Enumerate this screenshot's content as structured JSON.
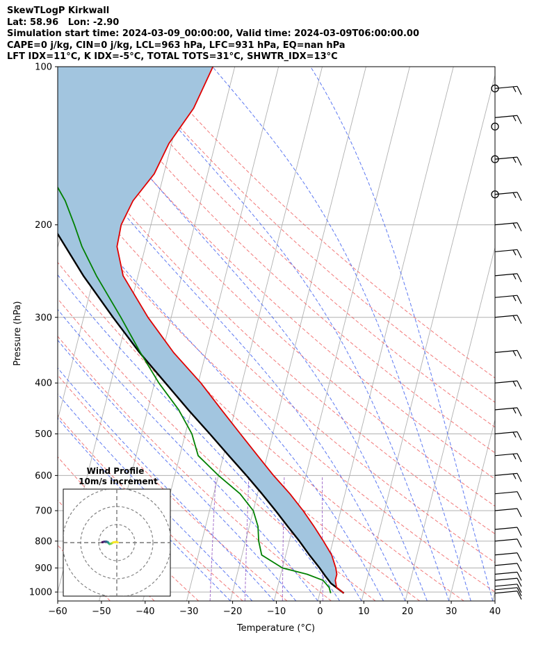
{
  "title_lines": [
    "SkewTLogP Kirkwall",
    "Lat: 58.96   Lon: -2.90",
    "Simulation start time: 2024-03-09_00:00:00, Valid time: 2024-03-09T06:00:00.00",
    "CAPE=0 j/kg, CIN=0 j/kg, LCL=963 hPa, LFC=931 hPa, EQ=nan hPa",
    "LFT IDX=11°C, K IDX=-5°C, TOTAL TOTS=31°C, SHWTR_IDX=13°C"
  ],
  "colors": {
    "temperature": "#e00000",
    "dewpoint": "#008000",
    "parcel": "#000000",
    "cape_fill": "#a2c5df",
    "dry_adiabat": "#f06060",
    "moist_adiabat": "#4060f0",
    "mixing_ratio": "#9050c0",
    "isotherm": "#b0b0b0",
    "grid": "#b0b0b0"
  },
  "chart_data": {
    "type": "line",
    "subtype": "skew-t log-p",
    "xlabel": "Temperature (°C)",
    "ylabel": "Pressure (hPa)",
    "xlim": [
      -60,
      40
    ],
    "ylim": [
      1040,
      100
    ],
    "y_scale": "log",
    "x_ticks": [
      -60,
      -50,
      -40,
      -30,
      -20,
      -10,
      0,
      10,
      20,
      30,
      40
    ],
    "x_tick_labels": [
      "−60",
      "−50",
      "−40",
      "−30",
      "−20",
      "−10",
      "0",
      "10",
      "20",
      "30",
      "40"
    ],
    "y_ticks": [
      100,
      200,
      300,
      400,
      500,
      600,
      700,
      800,
      900,
      1000
    ],
    "y_tick_labels": [
      "100",
      "200",
      "300",
      "400",
      "500",
      "600",
      "700",
      "800",
      "900",
      "1000"
    ],
    "grid": true,
    "series": [
      {
        "key": "temperature",
        "p": [
          1005,
          980,
          950,
          925,
          900,
          850,
          800,
          750,
          700,
          650,
          600,
          550,
          500,
          450,
          400,
          350,
          300,
          250,
          220,
          200,
          180,
          160,
          140,
          120,
          100
        ],
        "t": [
          5.5,
          3.5,
          2.8,
          2.8,
          2.2,
          0.5,
          -2.2,
          -5.2,
          -8.6,
          -12.6,
          -17.4,
          -22.2,
          -27.4,
          -33.1,
          -39.4,
          -47.4,
          -55.3,
          -63.4,
          -66.5,
          -66.8,
          -65.5,
          -62.2,
          -60.6,
          -57.0,
          -55.0
        ]
      },
      {
        "key": "dewpoint",
        "p": [
          1005,
          980,
          950,
          925,
          900,
          850,
          800,
          750,
          700,
          650,
          600,
          550,
          500,
          450,
          400,
          350,
          300,
          250,
          220,
          200,
          180,
          160,
          140,
          120,
          100
        ],
        "t": [
          2.5,
          1.8,
          0.0,
          -4.0,
          -10.0,
          -15.5,
          -17.0,
          -18.0,
          -20.0,
          -24.0,
          -30.0,
          -35.8,
          -38.5,
          -42.9,
          -49.0,
          -55.0,
          -61.5,
          -69.5,
          -74.5,
          -77.5,
          -81.0,
          -86.0,
          -90.5,
          -94.0,
          -96.0
        ]
      },
      {
        "key": "parcel",
        "p": [
          1005,
          963,
          931,
          900,
          850,
          800,
          750,
          700,
          650,
          600,
          550,
          500,
          450,
          400,
          350,
          300,
          250,
          200,
          150,
          100
        ],
        "t": [
          5.5,
          2.0,
          0.2,
          -1.5,
          -4.6,
          -7.7,
          -11.2,
          -14.9,
          -19.0,
          -23.6,
          -28.8,
          -34.4,
          -40.7,
          -47.5,
          -55.2,
          -63.3,
          -72.5,
          -82.6,
          -93.8,
          -105.5
        ]
      }
    ],
    "wind_barbs": {
      "p": [
        1005,
        990,
        975,
        950,
        925,
        890,
        850,
        800,
        760,
        700,
        650,
        600,
        550,
        500,
        450,
        400,
        350,
        300,
        275,
        250,
        225,
        200,
        175,
        150,
        125,
        110
      ],
      "count": 26,
      "calm_circles_p": [
        175,
        150,
        130,
        110
      ]
    },
    "hodograph": {
      "title": "Wind Profile",
      "subtitle": "10m/s increment",
      "rings_ms": [
        10,
        20,
        30
      ],
      "trace_u": [
        -8,
        -7,
        -6,
        -5,
        -4.5,
        -4,
        -3,
        -2,
        -0.5,
        0.5
      ],
      "trace_v": [
        0.2,
        0.5,
        0.6,
        0.3,
        -0.3,
        -0.8,
        -0.5,
        0.1,
        0.4,
        0.1
      ]
    }
  }
}
